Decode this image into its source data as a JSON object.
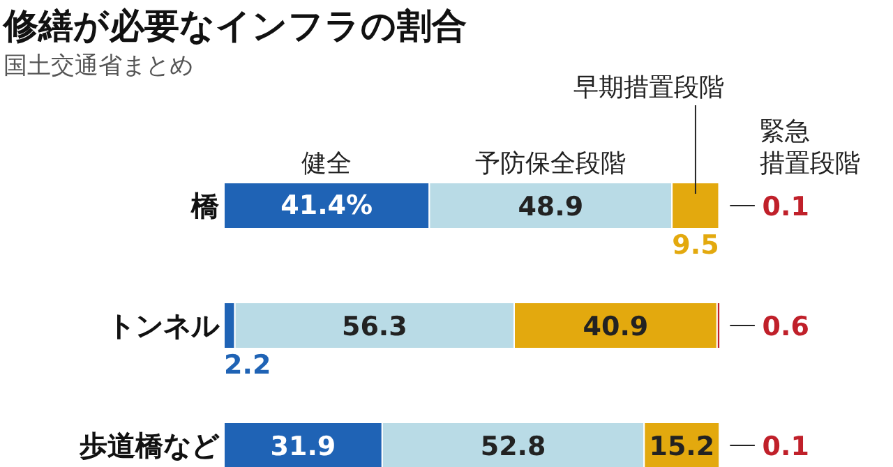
{
  "chart_data": {
    "type": "bar",
    "orientation": "horizontal",
    "stacked": true,
    "title": "修繕が必要なインフラの割合",
    "subtitle": "国土交通省まとめ",
    "categories": [
      "橋",
      "トンネル",
      "歩道橋など"
    ],
    "series": [
      {
        "name": "健全",
        "color": "#1f63b5",
        "values": [
          41.4,
          2.2,
          31.9
        ],
        "value_labels": [
          "41.4%",
          "2.2",
          "31.9"
        ]
      },
      {
        "name": "予防保全段階",
        "color": "#b9dbe6",
        "values": [
          48.9,
          56.3,
          52.8
        ],
        "value_labels": [
          "48.9",
          "56.3",
          "52.8"
        ]
      },
      {
        "name": "早期措置段階",
        "color": "#e3a90e",
        "values": [
          9.5,
          40.9,
          15.2
        ],
        "value_labels": [
          "9.5",
          "40.9",
          "15.2"
        ]
      },
      {
        "name": "緊急措置段階",
        "color": "#c0202a",
        "values": [
          0.1,
          0.6,
          0.1
        ],
        "value_labels": [
          "0.1",
          "0.6",
          "0.1"
        ]
      }
    ],
    "xlim": [
      0,
      100
    ],
    "grid": false,
    "tick_labels": false
  }
}
